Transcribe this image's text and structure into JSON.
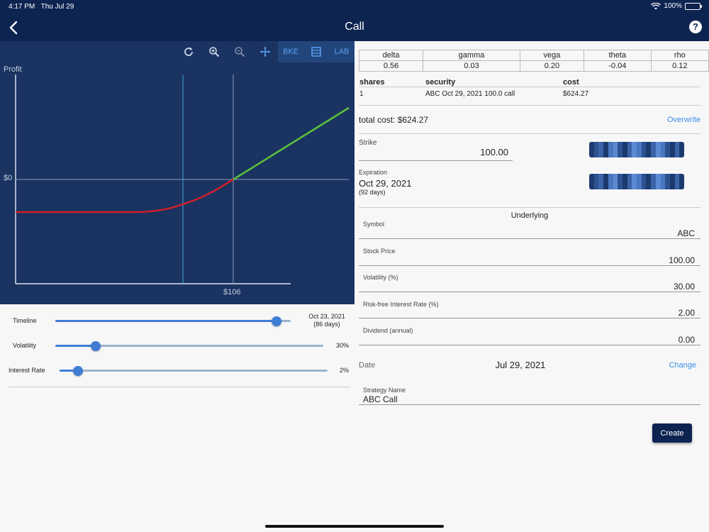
{
  "status": {
    "time": "4:17 PM",
    "date": "Thu Jul 29",
    "battery": "100%"
  },
  "nav": {
    "title": "Call"
  },
  "toolbar": {
    "bke": "BKE",
    "lab": "LAB"
  },
  "chart": {
    "ylabel": "Profit",
    "zero_tick": "$0",
    "x_tick": "$106",
    "colors": {
      "loss": "#d0202a",
      "profit": "#5cc13a",
      "background": "#1a3361"
    }
  },
  "chart_data": {
    "type": "line",
    "title": "",
    "ylabel": "Profit",
    "x_tick_labels": [
      "$106"
    ],
    "y_tick_labels": [
      "$0"
    ],
    "series": [
      {
        "segment": "loss",
        "color": "#d0202a"
      },
      {
        "segment": "profit",
        "color": "#5cc13a"
      }
    ],
    "grid": true
  },
  "sliders": {
    "timeline": {
      "label": "Timeline",
      "value_line1": "Oct 23, 2021",
      "value_line2": "(86 days)",
      "fraction": 0.94
    },
    "volatility": {
      "label": "Volatility",
      "value": "30%",
      "fraction": 0.15
    },
    "interest": {
      "label": "Interest Rate",
      "value": "2%",
      "fraction": 0.07
    }
  },
  "greeks": {
    "headers": [
      "delta",
      "gamma",
      "vega",
      "theta",
      "rho"
    ],
    "values": [
      "0.56",
      "0.03",
      "0.20",
      "-0.04",
      "0.12"
    ]
  },
  "position": {
    "headers": {
      "shares": "shares",
      "security": "security",
      "cost": "cost"
    },
    "row": {
      "shares": "1",
      "security": "ABC Oct 29, 2021 100.0 call",
      "cost": "$624.27"
    }
  },
  "total": {
    "text": "total cost: $624.27",
    "overwrite": "Overwrite"
  },
  "strike": {
    "label": "Strike",
    "value": "100.00"
  },
  "expiration": {
    "label": "Expiration",
    "value": "Oct 29, 2021",
    "days": "(92 days)"
  },
  "underlying": {
    "title": "Underlying",
    "symbol_label": "Symbol",
    "symbol": "ABC",
    "price_label": "Stock Price",
    "price": "100.00",
    "vol_label": "Volatility (%)",
    "vol": "30.00",
    "rate_label": "Risk-free Interest Rate (%)",
    "rate": "2.00",
    "div_label": "Dividend (annual)",
    "div": "0.00"
  },
  "date": {
    "label": "Date",
    "value": "Jul 29, 2021",
    "change": "Change"
  },
  "strategy": {
    "label": "Strategy Name",
    "value": "ABC Call"
  },
  "create": "Create"
}
